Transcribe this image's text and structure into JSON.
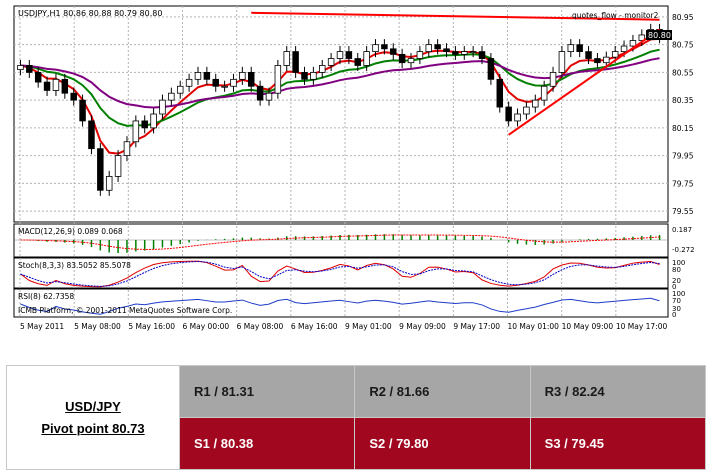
{
  "chart_data": {
    "type": "candlestick",
    "symbol_header": "USDJPY,H1  80.86 80.88 80.79 80.80",
    "indicator_name": "quotes_flow - monitor2",
    "last_price_label": "80.80",
    "price_ticks": [
      "80.95",
      "80.75",
      "80.55",
      "80.35",
      "80.15",
      "79.95",
      "79.75",
      "79.55"
    ],
    "price_range": [
      79.5,
      81.0
    ],
    "time_labels": [
      "5 May 2011",
      "5 May 08:00",
      "5 May 16:00",
      "6 May 00:00",
      "6 May 08:00",
      "6 May 16:00",
      "9 May 01:00",
      "9 May 09:00",
      "9 May 17:00",
      "10 May 01:00",
      "10 May 09:00",
      "10 May 17:00"
    ],
    "macd_label": "MACD(12,26,9) 0.089 0.068",
    "macd_ticks": [
      "0.187",
      "-0.272"
    ],
    "stoch_label": "Stoch(8,3,3) 83.5052 85.5078",
    "stoch_ticks": [
      "100",
      "80",
      "20",
      "0"
    ],
    "rsi_label": "RSI(8) 62.7358",
    "rsi_ticks": [
      "100",
      "70",
      "30",
      "0"
    ],
    "copyright": "ICMB Platform, © 2001-2011 MetaQuotes Software Corp.",
    "closes": [
      80.6,
      80.55,
      80.48,
      80.42,
      80.5,
      80.4,
      80.35,
      80.2,
      80.0,
      79.7,
      79.8,
      79.95,
      80.05,
      80.2,
      80.15,
      80.25,
      80.35,
      80.4,
      80.45,
      80.5,
      80.55,
      80.5,
      80.45,
      80.45,
      80.5,
      80.55,
      80.45,
      80.35,
      80.4,
      80.6,
      80.7,
      80.55,
      80.5,
      80.55,
      80.6,
      80.65,
      80.7,
      80.65,
      80.6,
      80.7,
      80.75,
      80.72,
      80.68,
      80.62,
      80.65,
      80.7,
      80.75,
      80.72,
      80.7,
      80.68,
      80.7,
      80.7,
      80.65,
      80.5,
      80.3,
      80.2,
      80.25,
      80.3,
      80.35,
      80.45,
      80.55,
      80.7,
      80.75,
      80.7,
      80.65,
      80.62,
      80.66,
      80.7,
      80.74,
      80.78,
      80.82,
      80.86,
      80.8
    ],
    "support_line": {
      "from": [
        55,
        80.1
      ],
      "to": [
        72,
        80.86
      ]
    },
    "resistance_line": {
      "from": [
        26,
        80.98
      ],
      "to": [
        72,
        80.93
      ]
    },
    "colors": {
      "bull": "#ffffff",
      "bear": "#000000",
      "ema_red": "#e00000",
      "ema_green": "#008000",
      "ema_purple": "#800080",
      "trend": "#ff0000"
    }
  },
  "pivot": {
    "pair": "USD/JPY",
    "pivot_point": "Pivot point 80.73",
    "r1": "R1 / 81.31",
    "r2": "R2 / 81.66",
    "r3": "R3 / 82.24",
    "s1": "S1 / 80.38",
    "s2": "S2 / 79.80",
    "s3": "S3 / 79.45"
  }
}
